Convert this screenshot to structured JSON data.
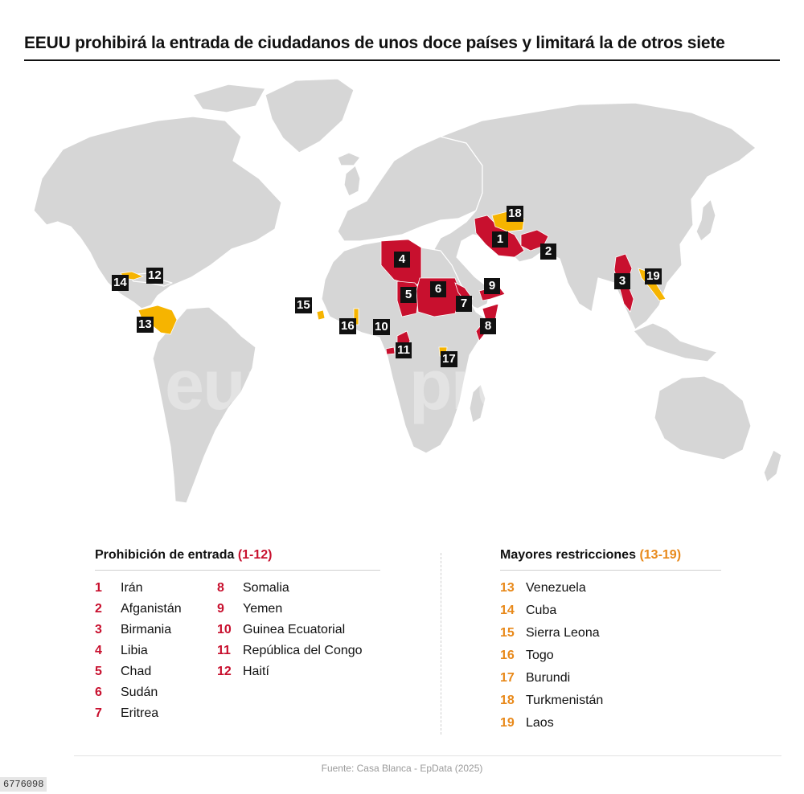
{
  "title": "EEUU prohibirá la entrada de ciudadanos de unos doce países y limitará la de otros siete",
  "colors": {
    "ban": "#c8102e",
    "restriction": "#f6b400",
    "land": "#d6d6d6",
    "border": "#ffffff"
  },
  "watermark": "europa press",
  "map_labels": [
    "1",
    "2",
    "3",
    "4",
    "5",
    "6",
    "7",
    "8",
    "9",
    "10",
    "11",
    "12",
    "13",
    "14",
    "15",
    "16",
    "17",
    "18",
    "19"
  ],
  "legend_ban": {
    "title": "Prohibición de entrada",
    "range": "(1-12)",
    "items": [
      {
        "num": "1",
        "name": "Irán"
      },
      {
        "num": "2",
        "name": "Afganistán"
      },
      {
        "num": "3",
        "name": "Birmania"
      },
      {
        "num": "4",
        "name": "Libia"
      },
      {
        "num": "5",
        "name": "Chad"
      },
      {
        "num": "6",
        "name": "Sudán"
      },
      {
        "num": "7",
        "name": "Eritrea"
      },
      {
        "num": "8",
        "name": "Somalia"
      },
      {
        "num": "9",
        "name": "Yemen"
      },
      {
        "num": "10",
        "name": "Guinea Ecuatorial"
      },
      {
        "num": "11",
        "name": "República del Congo"
      },
      {
        "num": "12",
        "name": "Haití"
      }
    ]
  },
  "legend_restrict": {
    "title": "Mayores restricciones",
    "range": "(13-19)",
    "items": [
      {
        "num": "13",
        "name": "Venezuela"
      },
      {
        "num": "14",
        "name": "Cuba"
      },
      {
        "num": "15",
        "name": "Sierra Leona"
      },
      {
        "num": "16",
        "name": "Togo"
      },
      {
        "num": "17",
        "name": "Burundi"
      },
      {
        "num": "18",
        "name": "Turkmenistán"
      },
      {
        "num": "19",
        "name": "Laos"
      }
    ]
  },
  "source": "Fuente: Casa Blanca - EpData (2025)",
  "photo_id": "6776098"
}
